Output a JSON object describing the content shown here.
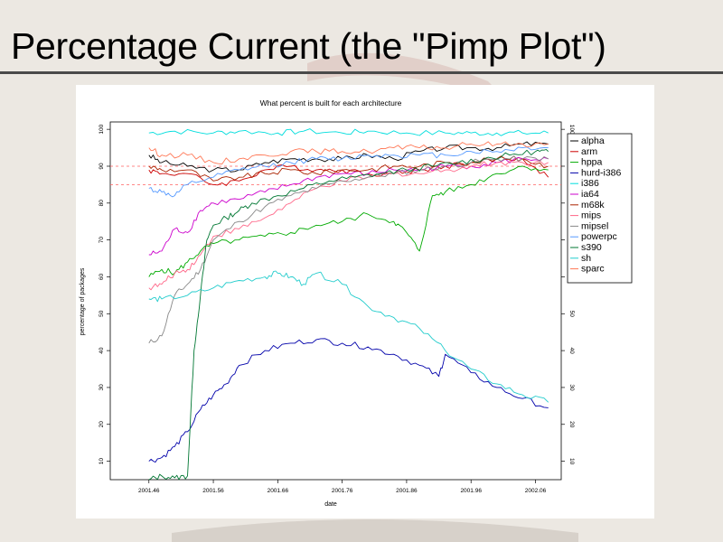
{
  "slide": {
    "title": "Percentage Current (the \"Pimp Plot\")"
  },
  "chart_data": {
    "type": "line",
    "title": "What percent is built for each architecture",
    "xlabel": "date",
    "ylabel": "percentage of packages",
    "xlim": [
      2001.4,
      2002.1
    ],
    "ylim": [
      5,
      102
    ],
    "x_ticks": [
      2001.46,
      2001.56,
      2001.66,
      2001.76,
      2001.86,
      2001.96,
      2002.06
    ],
    "x_tick_labels": [
      "2001.46",
      "2001.56",
      "2001.66",
      "2001.76",
      "2001.86",
      "2001.96",
      "2002.06"
    ],
    "y_ticks": [
      10,
      20,
      30,
      40,
      50,
      60,
      70,
      80,
      90,
      100
    ],
    "y_tick_labels": [
      "10",
      "20",
      "30",
      "40",
      "50",
      "60",
      "70",
      "80",
      "90",
      "100"
    ],
    "reference_lines": [
      {
        "y": 85,
        "color": "#ff6060",
        "style": "dashed"
      },
      {
        "y": 90,
        "color": "#ff6060",
        "style": "dashed"
      }
    ],
    "legend_position": "top-right",
    "series": [
      {
        "name": "alpha",
        "color": "#000000",
        "points": [
          [
            2001.46,
            93
          ],
          [
            2001.48,
            91
          ],
          [
            2001.52,
            90
          ],
          [
            2001.56,
            89
          ],
          [
            2001.6,
            89
          ],
          [
            2001.64,
            91
          ],
          [
            2001.68,
            92
          ],
          [
            2001.72,
            92
          ],
          [
            2001.76,
            92
          ],
          [
            2001.8,
            93
          ],
          [
            2001.84,
            92
          ],
          [
            2001.88,
            94
          ],
          [
            2001.92,
            95
          ],
          [
            2001.96,
            95
          ],
          [
            2002.0,
            95
          ],
          [
            2002.04,
            96
          ],
          [
            2002.08,
            96
          ]
        ]
      },
      {
        "name": "arm",
        "color": "#cc0000",
        "points": [
          [
            2001.46,
            89
          ],
          [
            2001.48,
            88
          ],
          [
            2001.52,
            88
          ],
          [
            2001.56,
            85
          ],
          [
            2001.6,
            86
          ],
          [
            2001.64,
            89
          ],
          [
            2001.68,
            90
          ],
          [
            2001.72,
            89
          ],
          [
            2001.76,
            89
          ],
          [
            2001.8,
            88
          ],
          [
            2001.84,
            88
          ],
          [
            2001.88,
            89
          ],
          [
            2001.92,
            90
          ],
          [
            2001.96,
            91
          ],
          [
            2002.0,
            92
          ],
          [
            2002.04,
            92
          ],
          [
            2002.08,
            87
          ]
        ]
      },
      {
        "name": "hppa",
        "color": "#00aa00",
        "points": [
          [
            2001.46,
            60
          ],
          [
            2001.48,
            62
          ],
          [
            2001.5,
            61
          ],
          [
            2001.52,
            64
          ],
          [
            2001.54,
            67
          ],
          [
            2001.56,
            69
          ],
          [
            2001.6,
            70
          ],
          [
            2001.64,
            71
          ],
          [
            2001.68,
            72
          ],
          [
            2001.72,
            74
          ],
          [
            2001.76,
            75
          ],
          [
            2001.8,
            77
          ],
          [
            2001.84,
            75
          ],
          [
            2001.86,
            72
          ],
          [
            2001.88,
            67
          ],
          [
            2001.9,
            82
          ],
          [
            2001.92,
            83
          ],
          [
            2001.96,
            85
          ],
          [
            2002.0,
            88
          ],
          [
            2002.04,
            90
          ],
          [
            2002.08,
            89
          ]
        ]
      },
      {
        "name": "hurd-i386",
        "color": "#0000aa",
        "points": [
          [
            2001.46,
            10
          ],
          [
            2001.48,
            11
          ],
          [
            2001.5,
            14
          ],
          [
            2001.52,
            18
          ],
          [
            2001.54,
            24
          ],
          [
            2001.56,
            28
          ],
          [
            2001.58,
            31
          ],
          [
            2001.6,
            36
          ],
          [
            2001.64,
            40
          ],
          [
            2001.68,
            42
          ],
          [
            2001.72,
            43
          ],
          [
            2001.76,
            42
          ],
          [
            2001.8,
            41
          ],
          [
            2001.84,
            39
          ],
          [
            2001.88,
            36
          ],
          [
            2001.91,
            33
          ],
          [
            2001.92,
            39
          ],
          [
            2001.96,
            34
          ],
          [
            2002.0,
            30
          ],
          [
            2002.04,
            27
          ],
          [
            2002.08,
            24.5
          ]
        ]
      },
      {
        "name": "i386",
        "color": "#00dddd",
        "points": [
          [
            2001.46,
            99
          ],
          [
            2001.5,
            99.5
          ],
          [
            2001.56,
            99
          ],
          [
            2001.6,
            99.5
          ],
          [
            2001.66,
            99
          ],
          [
            2001.7,
            99.5
          ],
          [
            2001.76,
            99
          ],
          [
            2001.8,
            99.5
          ],
          [
            2001.86,
            99
          ],
          [
            2001.92,
            99
          ],
          [
            2001.96,
            99
          ],
          [
            2002.0,
            99
          ],
          [
            2002.04,
            99
          ],
          [
            2002.08,
            99
          ]
        ]
      },
      {
        "name": "ia64",
        "color": "#cc00cc",
        "points": [
          [
            2001.46,
            66
          ],
          [
            2001.48,
            67
          ],
          [
            2001.5,
            73
          ],
          [
            2001.52,
            72
          ],
          [
            2001.54,
            78
          ],
          [
            2001.56,
            80
          ],
          [
            2001.6,
            81
          ],
          [
            2001.64,
            83
          ],
          [
            2001.68,
            85
          ],
          [
            2001.72,
            87
          ],
          [
            2001.76,
            88
          ],
          [
            2001.8,
            88
          ],
          [
            2001.84,
            89
          ],
          [
            2001.88,
            89
          ],
          [
            2001.92,
            90
          ],
          [
            2001.96,
            90
          ],
          [
            2002.0,
            91
          ],
          [
            2002.04,
            92
          ],
          [
            2002.08,
            92
          ]
        ]
      },
      {
        "name": "m68k",
        "color": "#aa2200",
        "points": [
          [
            2001.46,
            90
          ],
          [
            2001.48,
            89
          ],
          [
            2001.52,
            89
          ],
          [
            2001.56,
            86
          ],
          [
            2001.6,
            87
          ],
          [
            2001.64,
            88
          ],
          [
            2001.68,
            89
          ],
          [
            2001.72,
            88
          ],
          [
            2001.76,
            89
          ],
          [
            2001.8,
            89
          ],
          [
            2001.84,
            90
          ],
          [
            2001.88,
            90
          ],
          [
            2001.92,
            91
          ],
          [
            2001.96,
            91
          ],
          [
            2002.0,
            92
          ],
          [
            2002.04,
            92
          ],
          [
            2002.08,
            90
          ]
        ]
      },
      {
        "name": "mips",
        "color": "#ff6688",
        "points": [
          [
            2001.46,
            57
          ],
          [
            2001.48,
            58
          ],
          [
            2001.5,
            61
          ],
          [
            2001.52,
            62
          ],
          [
            2001.54,
            66
          ],
          [
            2001.56,
            71
          ],
          [
            2001.6,
            73
          ],
          [
            2001.64,
            76
          ],
          [
            2001.68,
            80
          ],
          [
            2001.72,
            84
          ],
          [
            2001.76,
            86
          ],
          [
            2001.8,
            87
          ],
          [
            2001.84,
            88
          ],
          [
            2001.88,
            88
          ],
          [
            2001.92,
            89
          ],
          [
            2001.96,
            90
          ],
          [
            2002.0,
            91
          ],
          [
            2002.04,
            91
          ],
          [
            2002.08,
            91
          ]
        ]
      },
      {
        "name": "mipsel",
        "color": "#888888",
        "points": [
          [
            2001.46,
            42
          ],
          [
            2001.48,
            44
          ],
          [
            2001.5,
            55
          ],
          [
            2001.52,
            58
          ],
          [
            2001.54,
            62
          ],
          [
            2001.56,
            70
          ],
          [
            2001.6,
            75
          ],
          [
            2001.64,
            79
          ],
          [
            2001.68,
            82
          ],
          [
            2001.72,
            84
          ],
          [
            2001.76,
            86
          ],
          [
            2001.8,
            87
          ],
          [
            2001.84,
            88
          ],
          [
            2001.88,
            89
          ],
          [
            2001.92,
            90
          ],
          [
            2001.96,
            91
          ],
          [
            2002.0,
            92
          ],
          [
            2002.04,
            92
          ],
          [
            2002.08,
            92
          ]
        ]
      },
      {
        "name": "powerpc",
        "color": "#5599ff",
        "points": [
          [
            2001.46,
            84
          ],
          [
            2001.48,
            83
          ],
          [
            2001.5,
            82
          ],
          [
            2001.52,
            85
          ],
          [
            2001.56,
            87
          ],
          [
            2001.6,
            89
          ],
          [
            2001.64,
            90
          ],
          [
            2001.68,
            91
          ],
          [
            2001.72,
            92
          ],
          [
            2001.76,
            92
          ],
          [
            2001.8,
            93
          ],
          [
            2001.84,
            93
          ],
          [
            2001.88,
            93
          ],
          [
            2001.92,
            93
          ],
          [
            2001.96,
            94
          ],
          [
            2002.0,
            94
          ],
          [
            2002.04,
            95
          ],
          [
            2002.08,
            95
          ]
        ]
      },
      {
        "name": "s390",
        "color": "#007733",
        "points": [
          [
            2001.46,
            5
          ],
          [
            2001.48,
            6
          ],
          [
            2001.5,
            5.5
          ],
          [
            2001.52,
            6
          ],
          [
            2001.53,
            40
          ],
          [
            2001.54,
            55
          ],
          [
            2001.55,
            70
          ],
          [
            2001.56,
            74
          ],
          [
            2001.58,
            76
          ],
          [
            2001.6,
            78
          ],
          [
            2001.62,
            80
          ],
          [
            2001.66,
            82
          ],
          [
            2001.7,
            84
          ],
          [
            2001.74,
            86
          ],
          [
            2001.78,
            87
          ],
          [
            2001.82,
            88
          ],
          [
            2001.86,
            89
          ],
          [
            2001.9,
            90
          ],
          [
            2001.94,
            91
          ],
          [
            2001.98,
            92
          ],
          [
            2002.02,
            93
          ],
          [
            2002.06,
            94
          ],
          [
            2002.08,
            94
          ]
        ]
      },
      {
        "name": "sh",
        "color": "#22cccc",
        "points": [
          [
            2001.46,
            54
          ],
          [
            2001.48,
            54
          ],
          [
            2001.52,
            55
          ],
          [
            2001.56,
            57
          ],
          [
            2001.6,
            59
          ],
          [
            2001.64,
            60
          ],
          [
            2001.66,
            61
          ],
          [
            2001.68,
            60
          ],
          [
            2001.7,
            58
          ],
          [
            2001.72,
            61
          ],
          [
            2001.76,
            58
          ],
          [
            2001.8,
            52
          ],
          [
            2001.84,
            49
          ],
          [
            2001.88,
            46
          ],
          [
            2001.92,
            40
          ],
          [
            2001.96,
            35
          ],
          [
            2002.0,
            31
          ],
          [
            2002.04,
            28
          ],
          [
            2002.08,
            26
          ]
        ]
      },
      {
        "name": "sparc",
        "color": "#ff7755",
        "points": [
          [
            2001.46,
            95
          ],
          [
            2001.48,
            93
          ],
          [
            2001.52,
            93
          ],
          [
            2001.56,
            91
          ],
          [
            2001.6,
            92
          ],
          [
            2001.64,
            93
          ],
          [
            2001.68,
            94
          ],
          [
            2001.72,
            94
          ],
          [
            2001.76,
            94
          ],
          [
            2001.8,
            94
          ],
          [
            2001.84,
            95
          ],
          [
            2001.88,
            95
          ],
          [
            2001.92,
            95
          ],
          [
            2001.96,
            96
          ],
          [
            2002.0,
            96
          ],
          [
            2002.04,
            96
          ],
          [
            2002.08,
            96
          ]
        ]
      }
    ]
  }
}
